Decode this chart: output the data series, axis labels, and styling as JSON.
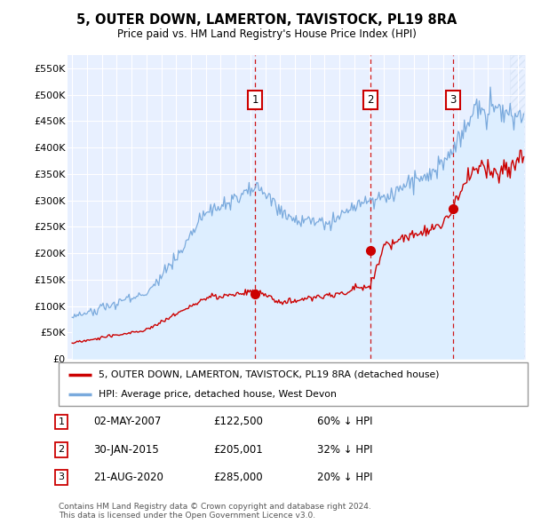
{
  "title": "5, OUTER DOWN, LAMERTON, TAVISTOCK, PL19 8RA",
  "subtitle": "Price paid vs. HM Land Registry's House Price Index (HPI)",
  "ylim": [
    0,
    575000
  ],
  "yticks": [
    0,
    50000,
    100000,
    150000,
    200000,
    250000,
    300000,
    350000,
    400000,
    450000,
    500000,
    550000
  ],
  "ytick_labels": [
    "£0",
    "£50K",
    "£100K",
    "£150K",
    "£200K",
    "£250K",
    "£300K",
    "£350K",
    "£400K",
    "£450K",
    "£500K",
    "£550K"
  ],
  "xlim_start": 1994.7,
  "xlim_end": 2025.5,
  "purchase_color": "#cc0000",
  "hpi_color": "#7aaadd",
  "hpi_fill_color": "#ddeeff",
  "purchases": [
    {
      "date_num": 2007.33,
      "price": 122500,
      "label": "1"
    },
    {
      "date_num": 2015.08,
      "price": 205001,
      "label": "2"
    },
    {
      "date_num": 2020.64,
      "price": 285000,
      "label": "3"
    }
  ],
  "legend_property_label": "5, OUTER DOWN, LAMERTON, TAVISTOCK, PL19 8RA (detached house)",
  "legend_hpi_label": "HPI: Average price, detached house, West Devon",
  "table_rows": [
    {
      "num": "1",
      "date": "02-MAY-2007",
      "price": "£122,500",
      "pct": "60% ↓ HPI"
    },
    {
      "num": "2",
      "date": "30-JAN-2015",
      "price": "£205,001",
      "pct": "32% ↓ HPI"
    },
    {
      "num": "3",
      "date": "21-AUG-2020",
      "price": "£285,000",
      "pct": "20% ↓ HPI"
    }
  ],
  "footer": "Contains HM Land Registry data © Crown copyright and database right 2024.\nThis data is licensed under the Open Government Licence v3.0.",
  "bg_color": "#e8f0ff",
  "hatch_color": "#c8d8ee"
}
